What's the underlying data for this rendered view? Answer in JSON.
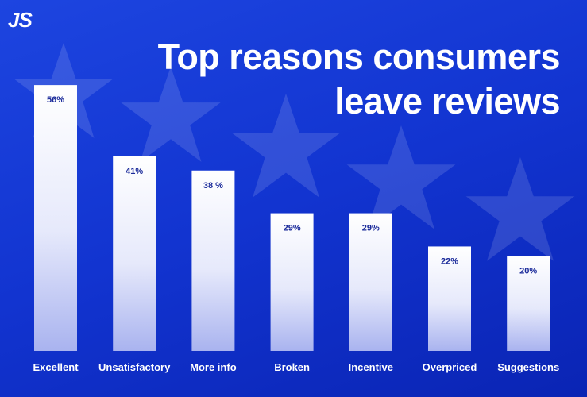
{
  "logo": "JS",
  "chart_data": {
    "type": "bar",
    "title": "Top reasons consumers leave reviews",
    "categories": [
      "Excellent",
      "Unsatisfactory",
      "More info",
      "Broken",
      "Incentive",
      "Overpriced",
      "Suggestions"
    ],
    "values": [
      56,
      41,
      38,
      29,
      29,
      22,
      20
    ],
    "value_labels": [
      "56%",
      "41%",
      "38 %",
      "29%",
      "29%",
      "22%",
      "20%"
    ],
    "color": "#ffffff"
  }
}
